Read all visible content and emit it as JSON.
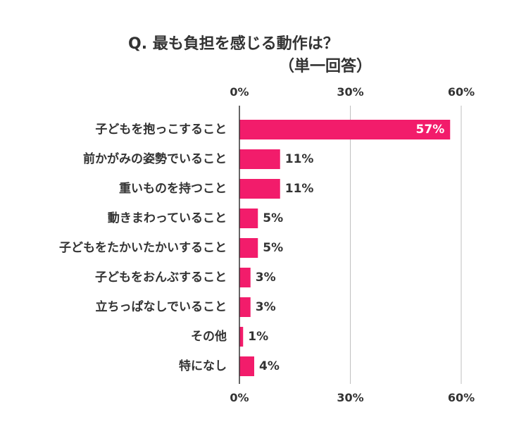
{
  "title_line1": "Q.  最も負担を感じる動作は？",
  "title_line2": "（単一回答）",
  "colors": {
    "bar": "#f21c6b",
    "text": "#333333",
    "grid": "#bfbfbf",
    "axis": "#333333",
    "inside_label": "#ffffff"
  },
  "chart_data": {
    "type": "bar",
    "orientation": "horizontal",
    "title": "Q.  最も負担を感じる動作は？（単一回答）",
    "categories": [
      "子どもを抱っこすること",
      "前かがみの姿勢でいること",
      "重いものを持つこと",
      "動きまわっていること",
      "子どもをたかいたかいすること",
      "子どもをおんぶすること",
      "立ちっぱなしでいること",
      "その他",
      "特になし"
    ],
    "values": [
      57,
      11,
      11,
      5,
      5,
      3,
      3,
      1,
      4
    ],
    "value_labels": [
      "57%",
      "11%",
      "11%",
      "5%",
      "5%",
      "3%",
      "3%",
      "1%",
      "4%"
    ],
    "xlim": [
      0,
      60
    ],
    "ticks": [
      0,
      30,
      60
    ],
    "tick_labels": [
      "0%",
      "30%",
      "60%"
    ],
    "tick_labels_top_and_bottom": true,
    "grid": true,
    "legend": "none"
  }
}
